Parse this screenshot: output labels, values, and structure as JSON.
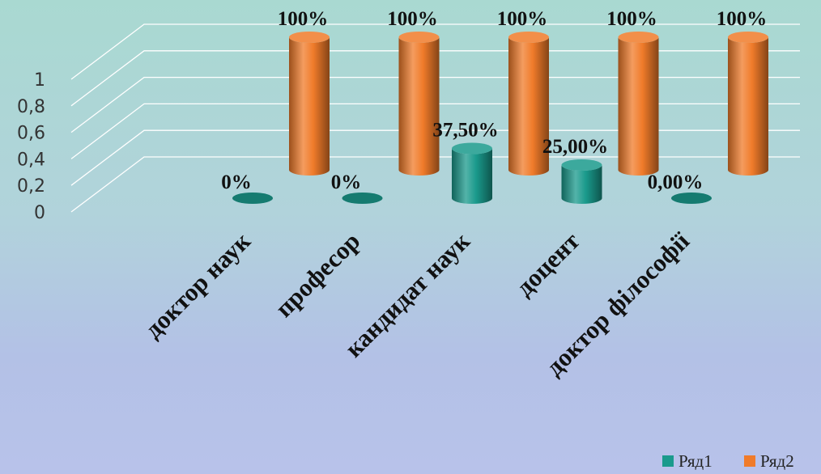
{
  "chart_data": {
    "type": "bar",
    "categories": [
      "доктор наук",
      "професор",
      "кандидат наук",
      "доцент",
      "доктор філософії"
    ],
    "series": [
      {
        "name": "Ряд1",
        "values": [
          0,
          0,
          0.375,
          0.25,
          0
        ],
        "labels": [
          "0%",
          "0%",
          "37,50%",
          "25,00%",
          "0,00%"
        ],
        "color": "#1a9a8c"
      },
      {
        "name": "Ряд2",
        "values": [
          1,
          1,
          1,
          1,
          1
        ],
        "labels": [
          "100%",
          "100%",
          "100%",
          "100%",
          "100%"
        ],
        "color": "#f07b2a"
      }
    ],
    "yticks": [
      "0",
      "0,2",
      "0,4",
      "0,6",
      "0,8",
      "1"
    ],
    "ylim": [
      0,
      1
    ],
    "grid": true,
    "legend": "bottom-right",
    "style": "3d-cylinder"
  }
}
